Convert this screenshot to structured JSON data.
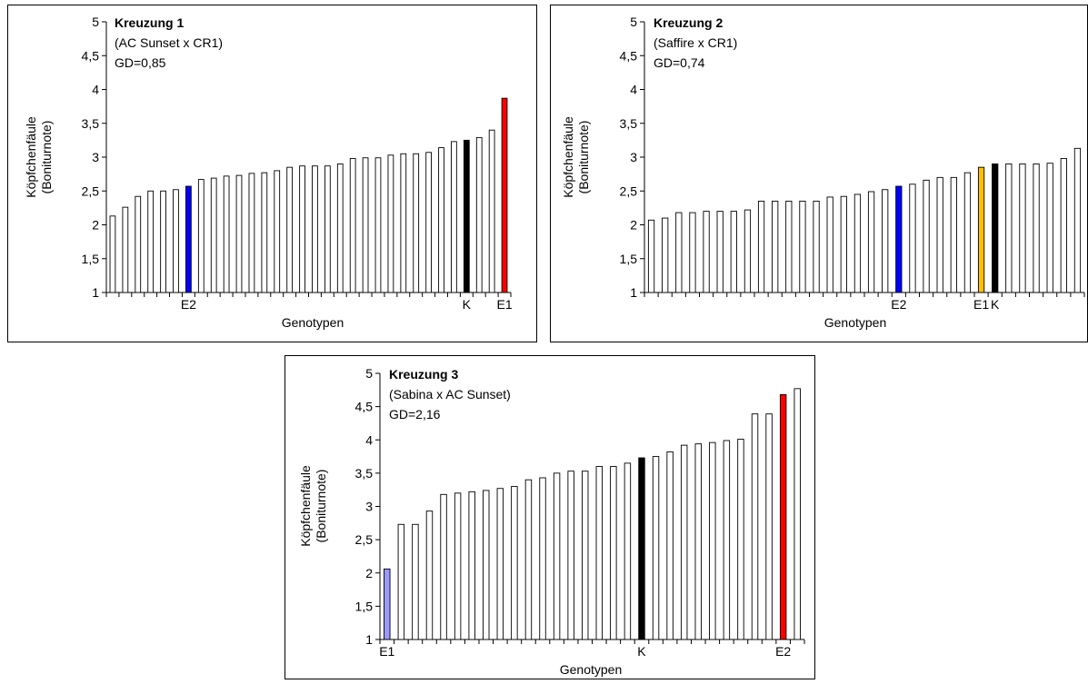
{
  "chart_data": [
    {
      "type": "bar",
      "title": "Kreuzung 1",
      "subtitle": "(AC Sunset x CR1)",
      "annotation": "GD=0,85",
      "xlabel": "Genotypen",
      "ylabel": "Köpfchenfäule",
      "ylabel2": "(Boniturnote)",
      "ylim": [
        1,
        5
      ],
      "yticks": [
        "1",
        "1,5",
        "2",
        "2,5",
        "3",
        "3,5",
        "4",
        "4,5",
        "5"
      ],
      "values": [
        2.13,
        2.26,
        2.42,
        2.5,
        2.5,
        2.52,
        2.57,
        2.67,
        2.69,
        2.72,
        2.73,
        2.76,
        2.77,
        2.8,
        2.85,
        2.87,
        2.87,
        2.87,
        2.9,
        2.98,
        2.99,
        2.99,
        3.03,
        3.05,
        3.05,
        3.07,
        3.14,
        3.23,
        3.25,
        3.29,
        3.4,
        3.87
      ],
      "colors": [
        "#fff",
        "#fff",
        "#fff",
        "#fff",
        "#fff",
        "#fff",
        "#0000ff",
        "#fff",
        "#fff",
        "#fff",
        "#fff",
        "#fff",
        "#fff",
        "#fff",
        "#fff",
        "#fff",
        "#fff",
        "#fff",
        "#fff",
        "#fff",
        "#fff",
        "#fff",
        "#fff",
        "#fff",
        "#fff",
        "#fff",
        "#fff",
        "#fff",
        "#000000",
        "#fff",
        "#fff",
        "#ff0000"
      ],
      "category_labels": [
        {
          "index": 6,
          "label": "E2"
        },
        {
          "index": 28,
          "label": "K"
        },
        {
          "index": 31,
          "label": "E1"
        }
      ]
    },
    {
      "type": "bar",
      "title": "Kreuzung 2",
      "subtitle": "(Saffire x CR1)",
      "annotation": "GD=0,74",
      "xlabel": "Genotypen",
      "ylabel": "Köpfchenfäule",
      "ylabel2": "(Boniturnote)",
      "ylim": [
        1,
        5
      ],
      "yticks": [
        "1",
        "1,5",
        "2",
        "2,5",
        "3",
        "3,5",
        "4",
        "4,5",
        "5"
      ],
      "values": [
        2.07,
        2.1,
        2.18,
        2.18,
        2.2,
        2.2,
        2.2,
        2.22,
        2.35,
        2.35,
        2.35,
        2.35,
        2.35,
        2.41,
        2.42,
        2.45,
        2.49,
        2.52,
        2.57,
        2.6,
        2.66,
        2.7,
        2.7,
        2.77,
        2.85,
        2.9,
        2.9,
        2.9,
        2.9,
        2.91,
        2.98,
        3.13
      ],
      "colors": [
        "#fff",
        "#fff",
        "#fff",
        "#fff",
        "#fff",
        "#fff",
        "#fff",
        "#fff",
        "#fff",
        "#fff",
        "#fff",
        "#fff",
        "#fff",
        "#fff",
        "#fff",
        "#fff",
        "#fff",
        "#fff",
        "#0000ff",
        "#fff",
        "#fff",
        "#fff",
        "#fff",
        "#fff",
        "#ffc000",
        "#000000",
        "#fff",
        "#fff",
        "#fff",
        "#fff",
        "#fff",
        "#fff"
      ],
      "category_labels": [
        {
          "index": 18,
          "label": "E2"
        },
        {
          "index": 24,
          "label": "E1"
        },
        {
          "index": 25,
          "label": "K"
        }
      ]
    },
    {
      "type": "bar",
      "title": "Kreuzung 3",
      "subtitle": "(Sabina x AC Sunset)",
      "annotation": "GD=2,16",
      "xlabel": "Genotypen",
      "ylabel": "Köpfchenfäule",
      "ylabel2": "(Boniturnote)",
      "ylim": [
        1,
        5
      ],
      "yticks": [
        "1",
        "1,5",
        "2",
        "2,5",
        "3",
        "3,5",
        "4",
        "4,5",
        "5"
      ],
      "values": [
        2.06,
        2.73,
        2.73,
        2.93,
        3.18,
        3.2,
        3.22,
        3.24,
        3.27,
        3.3,
        3.4,
        3.43,
        3.5,
        3.53,
        3.53,
        3.6,
        3.6,
        3.65,
        3.73,
        3.75,
        3.82,
        3.92,
        3.94,
        3.96,
        3.99,
        4.01,
        4.39,
        4.39,
        4.68,
        4.77
      ],
      "colors": [
        "#9999ff",
        "#fff",
        "#fff",
        "#fff",
        "#fff",
        "#fff",
        "#fff",
        "#fff",
        "#fff",
        "#fff",
        "#fff",
        "#fff",
        "#fff",
        "#fff",
        "#fff",
        "#fff",
        "#fff",
        "#fff",
        "#000000",
        "#fff",
        "#fff",
        "#fff",
        "#fff",
        "#fff",
        "#fff",
        "#fff",
        "#fff",
        "#fff",
        "#ff0000",
        "#fff"
      ],
      "category_labels": [
        {
          "index": 0,
          "label": "E1"
        },
        {
          "index": 18,
          "label": "K"
        },
        {
          "index": 28,
          "label": "E2"
        }
      ]
    }
  ]
}
